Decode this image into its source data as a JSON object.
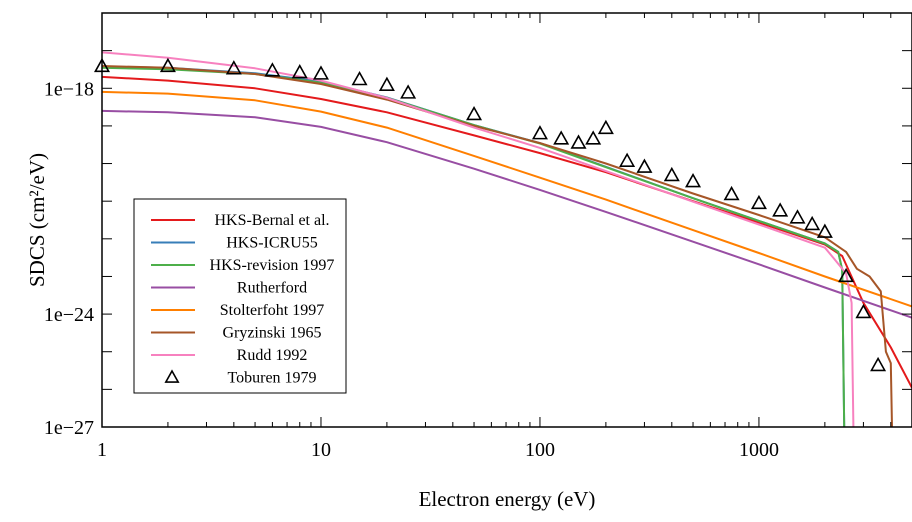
{
  "chart_data": {
    "type": "line",
    "title": "",
    "xlabel": "Electron energy (eV)",
    "ylabel": "SDCS (cm²/eV)",
    "xscale": "log",
    "yscale": "log",
    "xlim": [
      1,
      5000
    ],
    "ylim": [
      1e-27,
      1e-16
    ],
    "x_ticks": [
      {
        "value": 1,
        "label": "1"
      },
      {
        "value": 10,
        "label": "10"
      },
      {
        "value": 100,
        "label": "100"
      },
      {
        "value": 1000,
        "label": "1000"
      }
    ],
    "y_ticks": [
      {
        "value": 1e-27,
        "label": "1e−27"
      },
      {
        "value": 1e-24,
        "label": "1e−24"
      },
      {
        "value": 1e-18,
        "label": "1e−18"
      }
    ],
    "y_minor_ticks": [
      1e-26,
      1e-25,
      1e-23,
      1e-22,
      1e-21,
      1e-20,
      1e-19,
      1e-17
    ],
    "grid": false,
    "legend_position": "lower-left",
    "series": [
      {
        "name": "HKS-Bernal et al.",
        "color": "#e41a1c",
        "points": [
          [
            1,
            2e-18
          ],
          [
            2,
            1.6e-18
          ],
          [
            5,
            1e-18
          ],
          [
            10,
            5.2e-19
          ],
          [
            20,
            2.3e-19
          ],
          [
            50,
            5.6e-20
          ],
          [
            100,
            1.9e-20
          ],
          [
            200,
            5.9e-21
          ],
          [
            500,
            1e-21
          ],
          [
            1000,
            2.7e-22
          ],
          [
            2000,
            7e-23
          ],
          [
            2400,
            3.5e-23
          ],
          [
            3000,
            2e-24
          ],
          [
            4000,
            1.3e-25
          ],
          [
            5000,
            1.1e-26
          ]
        ]
      },
      {
        "name": "HKS-ICRU55",
        "color": "#377eb8",
        "points": [
          [
            1,
            3.8e-18
          ],
          [
            2,
            3.5e-18
          ],
          [
            5,
            2.5e-18
          ],
          [
            10,
            1.5e-18
          ],
          [
            20,
            5.7e-19
          ],
          [
            50,
            1.05e-19
          ],
          [
            100,
            3.5e-20
          ],
          [
            200,
            8.2e-21
          ],
          [
            500,
            1.2e-21
          ],
          [
            1000,
            3e-22
          ],
          [
            2000,
            7.5e-23
          ],
          [
            2300,
            4.5e-23
          ],
          [
            2400,
            1.5e-23
          ],
          [
            2450,
            1e-27
          ]
        ]
      },
      {
        "name": "HKS-revision 1997",
        "color": "#4daf4a",
        "points": [
          [
            1,
            3.5e-18
          ],
          [
            2,
            3.2e-18
          ],
          [
            5,
            2.4e-18
          ],
          [
            10,
            1.4e-18
          ],
          [
            20,
            5.6e-19
          ],
          [
            50,
            1.05e-19
          ],
          [
            100,
            3.4e-20
          ],
          [
            200,
            8e-21
          ],
          [
            500,
            1.2e-21
          ],
          [
            1000,
            3e-22
          ],
          [
            2000,
            7.5e-23
          ],
          [
            2300,
            4.5e-23
          ],
          [
            2400,
            1.5e-23
          ],
          [
            2450,
            1e-27
          ]
        ]
      },
      {
        "name": "Rutherford",
        "color": "#984ea3",
        "points": [
          [
            1,
            2.5e-19
          ],
          [
            2,
            2.3e-19
          ],
          [
            5,
            1.7e-19
          ],
          [
            10,
            9.4e-20
          ],
          [
            20,
            3.7e-20
          ],
          [
            50,
            7.3e-21
          ],
          [
            100,
            2e-21
          ],
          [
            200,
            5.2e-22
          ],
          [
            500,
            8.4e-23
          ],
          [
            1000,
            2.1e-23
          ],
          [
            2000,
            5.1e-24
          ],
          [
            5000,
            8e-25
          ]
        ]
      },
      {
        "name": "Stolterfoht 1997",
        "color": "#ff7f00",
        "points": [
          [
            1,
            8e-19
          ],
          [
            2,
            7.2e-19
          ],
          [
            5,
            4.8e-19
          ],
          [
            10,
            2.4e-19
          ],
          [
            20,
            9e-20
          ],
          [
            50,
            1.6e-20
          ],
          [
            100,
            4.2e-21
          ],
          [
            200,
            1.1e-21
          ],
          [
            500,
            1.7e-22
          ],
          [
            1000,
            4.2e-23
          ],
          [
            2000,
            1e-23
          ],
          [
            5000,
            1.6e-24
          ]
        ]
      },
      {
        "name": "Gryzinski 1965",
        "color": "#a65628",
        "points": [
          [
            1,
            3.9e-18
          ],
          [
            2,
            3.5e-18
          ],
          [
            5,
            2.4e-18
          ],
          [
            10,
            1.3e-18
          ],
          [
            20,
            5e-19
          ],
          [
            50,
            1e-19
          ],
          [
            100,
            3.5e-20
          ],
          [
            200,
            1e-20
          ],
          [
            500,
            1.6e-21
          ],
          [
            1000,
            4.3e-22
          ],
          [
            2000,
            1.1e-22
          ],
          [
            2500,
            4.5e-23
          ],
          [
            2800,
            1.6e-23
          ],
          [
            3200,
            1e-23
          ],
          [
            3600,
            4e-24
          ],
          [
            3800,
            1e-25
          ],
          [
            4000,
            5e-26
          ],
          [
            4050,
            1e-27
          ]
        ]
      },
      {
        "name": "Rudd 1992",
        "color": "#f781bf",
        "points": [
          [
            1,
            9e-18
          ],
          [
            2,
            6.5e-18
          ],
          [
            5,
            3.4e-18
          ],
          [
            10,
            1.6e-18
          ],
          [
            20,
            5.5e-19
          ],
          [
            50,
            9e-20
          ],
          [
            100,
            2.6e-20
          ],
          [
            200,
            6.3e-21
          ],
          [
            500,
            9.7e-22
          ],
          [
            1000,
            2.4e-22
          ],
          [
            2000,
            5.8e-23
          ],
          [
            2200,
            3e-23
          ],
          [
            2500,
            1.2e-23
          ],
          [
            2650,
            2e-24
          ],
          [
            2700,
            1e-27
          ]
        ]
      },
      {
        "name": "Toburen 1979",
        "color": "#000000",
        "marker": "triangle",
        "points": [
          [
            1,
            3.8e-18
          ],
          [
            2,
            3.8e-18
          ],
          [
            4,
            3.3e-18
          ],
          [
            6,
            2.9e-18
          ],
          [
            8,
            2.6e-18
          ],
          [
            10,
            2.4e-18
          ],
          [
            15,
            1.7e-18
          ],
          [
            20,
            1.2e-18
          ],
          [
            25,
            7.5e-19
          ],
          [
            50,
            2e-19
          ],
          [
            100,
            6.2e-20
          ],
          [
            125,
            4.5e-20
          ],
          [
            150,
            3.5e-20
          ],
          [
            175,
            4.5e-20
          ],
          [
            200,
            8.6e-20
          ],
          [
            250,
            1.15e-20
          ],
          [
            300,
            8e-21
          ],
          [
            400,
            4.8e-21
          ],
          [
            500,
            3.3e-21
          ],
          [
            750,
            1.5e-21
          ],
          [
            1000,
            8.7e-22
          ],
          [
            1250,
            5.5e-22
          ],
          [
            1500,
            3.6e-22
          ],
          [
            1750,
            2.4e-22
          ],
          [
            2000,
            1.5e-22
          ],
          [
            2500,
            1e-23
          ],
          [
            3000,
            1.1e-24
          ],
          [
            3500,
            4.3e-26
          ]
        ]
      }
    ]
  }
}
